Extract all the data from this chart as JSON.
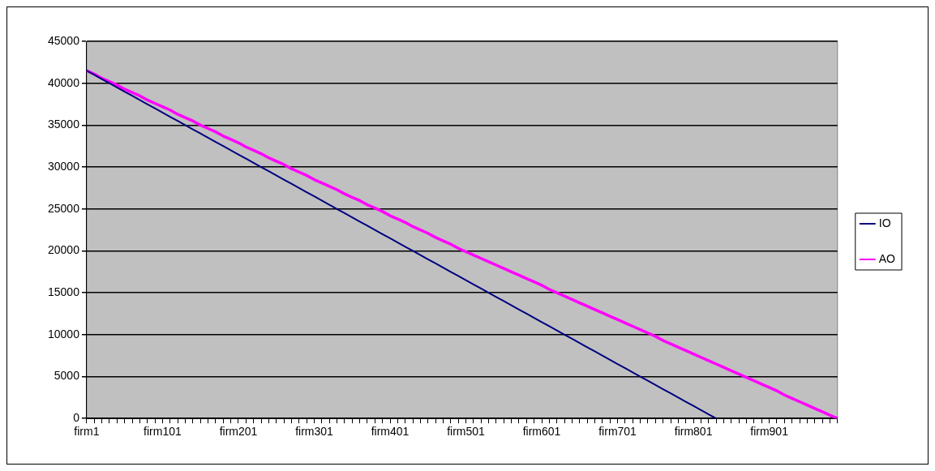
{
  "chart_data": {
    "type": "line",
    "categories": [
      "firm1",
      null,
      null,
      null,
      null,
      null,
      null,
      null,
      null,
      null,
      "firm101",
      null,
      null,
      null,
      null,
      null,
      null,
      null,
      null,
      null,
      "firm201",
      null,
      null,
      null,
      null,
      null,
      null,
      null,
      null,
      null,
      "firm301",
      null,
      null,
      null,
      null,
      null,
      null,
      null,
      null,
      null,
      "firm401",
      null,
      null,
      null,
      null,
      null,
      null,
      null,
      null,
      null,
      "firm501",
      null,
      null,
      null,
      null,
      null,
      null,
      null,
      null,
      null,
      "firm601",
      null,
      null,
      null,
      null,
      null,
      null,
      null,
      null,
      null,
      "firm701",
      null,
      null,
      null,
      null,
      null,
      null,
      null,
      null,
      null,
      "firm801",
      null,
      null,
      null,
      null,
      null,
      null,
      null,
      null,
      null,
      "firm901",
      null,
      null,
      null,
      null,
      null,
      null,
      null,
      null,
      null
    ],
    "ylim": [
      0,
      45000
    ],
    "yticks": [
      0,
      5000,
      10000,
      15000,
      20000,
      25000,
      30000,
      35000,
      40000,
      45000
    ],
    "series": [
      {
        "name": "IO",
        "color": "#000080",
        "values": [
          41500,
          41000,
          40500,
          40000,
          39500,
          39000,
          38500,
          38000,
          37500,
          37000,
          36500,
          36000,
          35500,
          35000,
          34500,
          34000,
          33500,
          33000,
          32500,
          32000,
          31500,
          31000,
          30500,
          30000,
          29500,
          29000,
          28500,
          28000,
          27500,
          27000,
          26500,
          26000,
          25500,
          25000,
          24500,
          24000,
          23500,
          23000,
          22500,
          22000,
          21500,
          21000,
          20500,
          20000,
          19500,
          19000,
          18500,
          18000,
          17500,
          17000,
          16500,
          16000,
          15500,
          15000,
          14500,
          14000,
          13500,
          13000,
          12500,
          12000,
          11500,
          11000,
          10500,
          10000,
          9500,
          9000,
          8500,
          8000,
          7500,
          7000,
          6500,
          6000,
          5500,
          5000,
          4500,
          4000,
          3500,
          3000,
          2500,
          2000,
          1500,
          1000,
          500,
          0,
          null,
          null,
          null,
          null,
          null,
          null,
          null,
          null,
          null,
          null,
          null,
          null,
          null,
          null,
          null,
          null
        ]
      },
      {
        "name": "AO",
        "color": "#ff00ff",
        "values": [
          41500,
          41100,
          40600,
          40200,
          39800,
          39300,
          38900,
          38500,
          38000,
          37600,
          37200,
          36800,
          36300,
          35900,
          35500,
          35000,
          34600,
          34200,
          33700,
          33300,
          32900,
          32400,
          32000,
          31600,
          31100,
          30700,
          30300,
          29800,
          29400,
          29000,
          28500,
          28100,
          27700,
          27300,
          26800,
          26400,
          26000,
          25500,
          25100,
          24700,
          24200,
          23800,
          23400,
          22900,
          22500,
          22100,
          21600,
          21200,
          20800,
          20300,
          19900,
          19500,
          19100,
          18700,
          18300,
          17900,
          17500,
          17100,
          16700,
          16300,
          15900,
          15400,
          15000,
          14600,
          14200,
          13800,
          13400,
          13000,
          12600,
          12200,
          11800,
          11400,
          11000,
          10600,
          10200,
          9800,
          9300,
          8900,
          8500,
          8100,
          7700,
          7300,
          6900,
          6500,
          6100,
          5700,
          5300,
          4900,
          4500,
          4100,
          3700,
          3300,
          2800,
          2400,
          2000,
          1600,
          1200,
          800,
          400,
          0
        ]
      }
    ],
    "grid": "y",
    "legend": "right",
    "marker": "none",
    "line_style": "solid"
  }
}
